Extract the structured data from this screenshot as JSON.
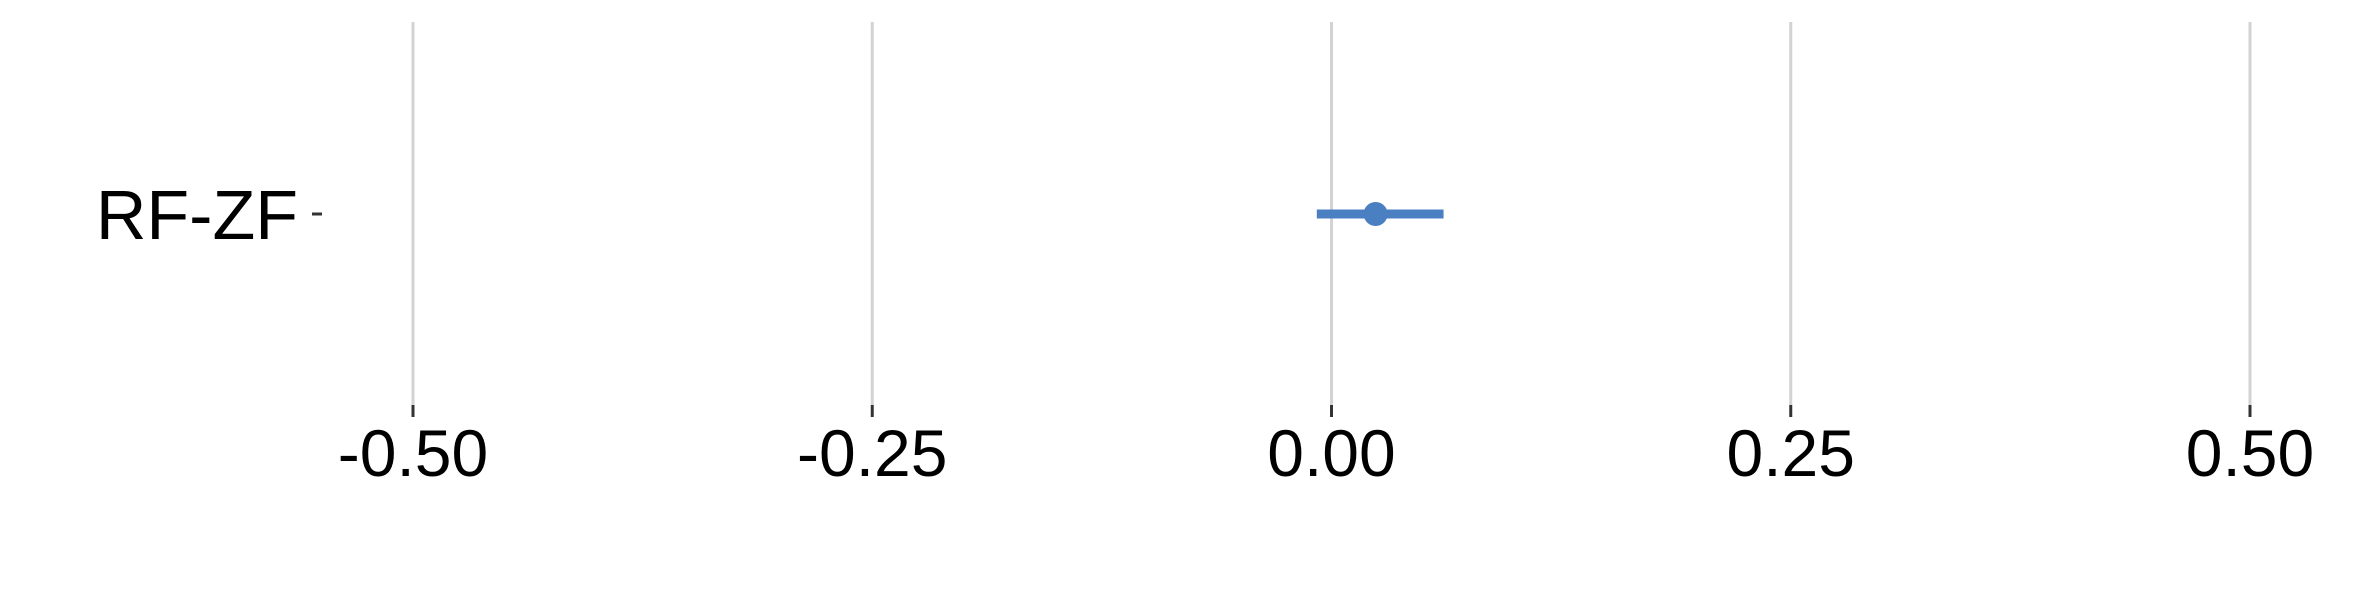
{
  "chart_data": {
    "type": "forest",
    "categories": [
      "RF-ZF"
    ],
    "points": [
      {
        "category": "RF-ZF",
        "estimate": 0.024,
        "ci_low": -0.008,
        "ci_high": 0.061
      }
    ],
    "xlim": [
      -0.5,
      0.5
    ],
    "x_ticks": [
      -0.5,
      -0.25,
      0.0,
      0.25,
      0.5
    ],
    "x_tick_labels": [
      "-0.50",
      "-0.25",
      "0.00",
      "0.25",
      "0.50"
    ],
    "grid": "vertical major gridlines on",
    "legend": "none",
    "title": "",
    "xlabel": "",
    "ylabel": "",
    "colors": {
      "series": "#4a7fc1",
      "grid": "#d3d3d3",
      "ticks": "#333333",
      "text": "#000000"
    }
  }
}
